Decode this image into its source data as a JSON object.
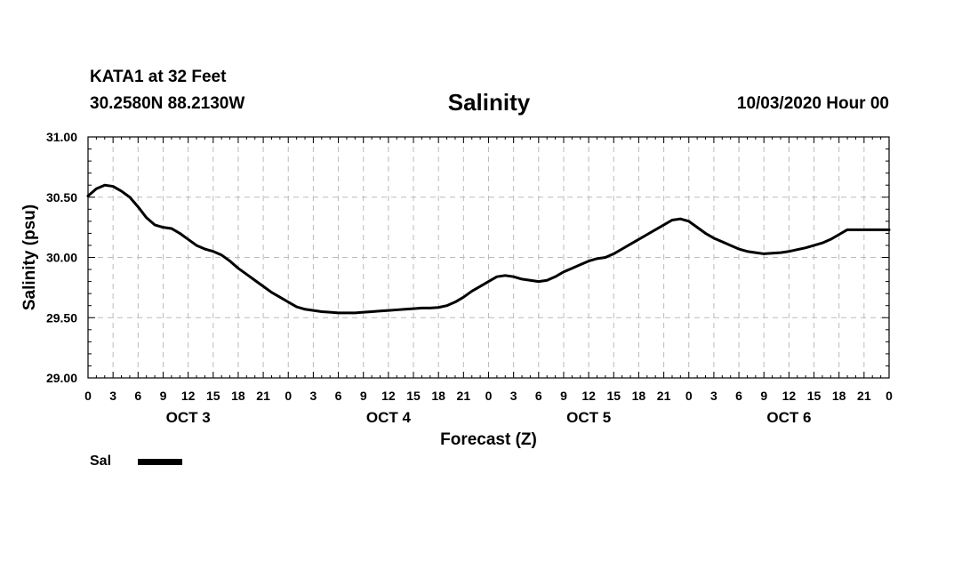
{
  "header": {
    "station": "KATA1 at 32 Feet",
    "coords": "30.2580N 88.2130W",
    "datetime": "10/03/2020 Hour 00"
  },
  "chart_data": {
    "type": "line",
    "title": "Salinity",
    "xlabel": "Forecast (Z)",
    "ylabel": "Salinity (psu)",
    "ylim": [
      29.0,
      31.0
    ],
    "yticks": [
      "29.00",
      "29.50",
      "30.00",
      "30.50",
      "31.00"
    ],
    "xlim": [
      0,
      96
    ],
    "xtick_step_hours": 3,
    "xtick_labels": [
      "0",
      "3",
      "6",
      "9",
      "12",
      "15",
      "18",
      "21",
      "0",
      "3",
      "6",
      "9",
      "12",
      "15",
      "18",
      "21",
      "0",
      "3",
      "6",
      "9",
      "12",
      "15",
      "18",
      "21",
      "0",
      "3",
      "6",
      "9",
      "12",
      "15",
      "18",
      "21",
      "0"
    ],
    "day_labels": [
      {
        "label": "OCT 3",
        "hour": 12
      },
      {
        "label": "OCT 4",
        "hour": 36
      },
      {
        "label": "OCT 5",
        "hour": 60
      },
      {
        "label": "OCT 6",
        "hour": 84
      }
    ],
    "grid": true,
    "legend_position": "bottom-left",
    "series": [
      {
        "name": "Sal",
        "color": "#000000",
        "x": [
          0,
          1,
          2,
          3,
          4,
          5,
          6,
          7,
          8,
          9,
          10,
          11,
          12,
          13,
          14,
          15,
          16,
          17,
          18,
          19,
          20,
          21,
          22,
          23,
          24,
          25,
          26,
          27,
          28,
          29,
          30,
          31,
          32,
          33,
          34,
          35,
          36,
          37,
          38,
          39,
          40,
          41,
          42,
          43,
          44,
          45,
          46,
          47,
          48,
          49,
          50,
          51,
          52,
          53,
          54,
          55,
          56,
          57,
          58,
          59,
          60,
          61,
          62,
          63,
          64,
          65,
          66,
          67,
          68,
          69,
          70,
          71,
          72,
          73,
          74,
          75,
          76,
          77,
          78,
          79,
          80,
          81,
          82,
          83,
          84,
          85,
          86,
          87,
          88,
          89,
          90,
          91,
          92,
          93,
          94,
          95,
          96
        ],
        "y": [
          30.51,
          30.57,
          30.6,
          30.59,
          30.55,
          30.5,
          30.42,
          30.33,
          30.27,
          30.25,
          30.24,
          30.2,
          30.15,
          30.1,
          30.07,
          30.05,
          30.02,
          29.97,
          29.91,
          29.86,
          29.81,
          29.76,
          29.71,
          29.67,
          29.63,
          29.59,
          29.57,
          29.56,
          29.55,
          29.545,
          29.54,
          29.54,
          29.54,
          29.545,
          29.55,
          29.555,
          29.56,
          29.565,
          29.57,
          29.575,
          29.58,
          29.58,
          29.585,
          29.6,
          29.63,
          29.67,
          29.72,
          29.76,
          29.8,
          29.84,
          29.85,
          29.84,
          29.82,
          29.81,
          29.8,
          29.81,
          29.84,
          29.88,
          29.91,
          29.94,
          29.97,
          29.99,
          30.0,
          30.03,
          30.07,
          30.11,
          30.15,
          30.19,
          30.23,
          30.27,
          30.31,
          30.32,
          30.3,
          30.25,
          30.2,
          30.16,
          30.13,
          30.1,
          30.07,
          30.05,
          30.04,
          30.03,
          30.035,
          30.04,
          30.05,
          30.065,
          30.08,
          30.1,
          30.12,
          30.15,
          30.19,
          30.23,
          30.23,
          30.23,
          30.23,
          30.23,
          30.23
        ]
      }
    ]
  }
}
